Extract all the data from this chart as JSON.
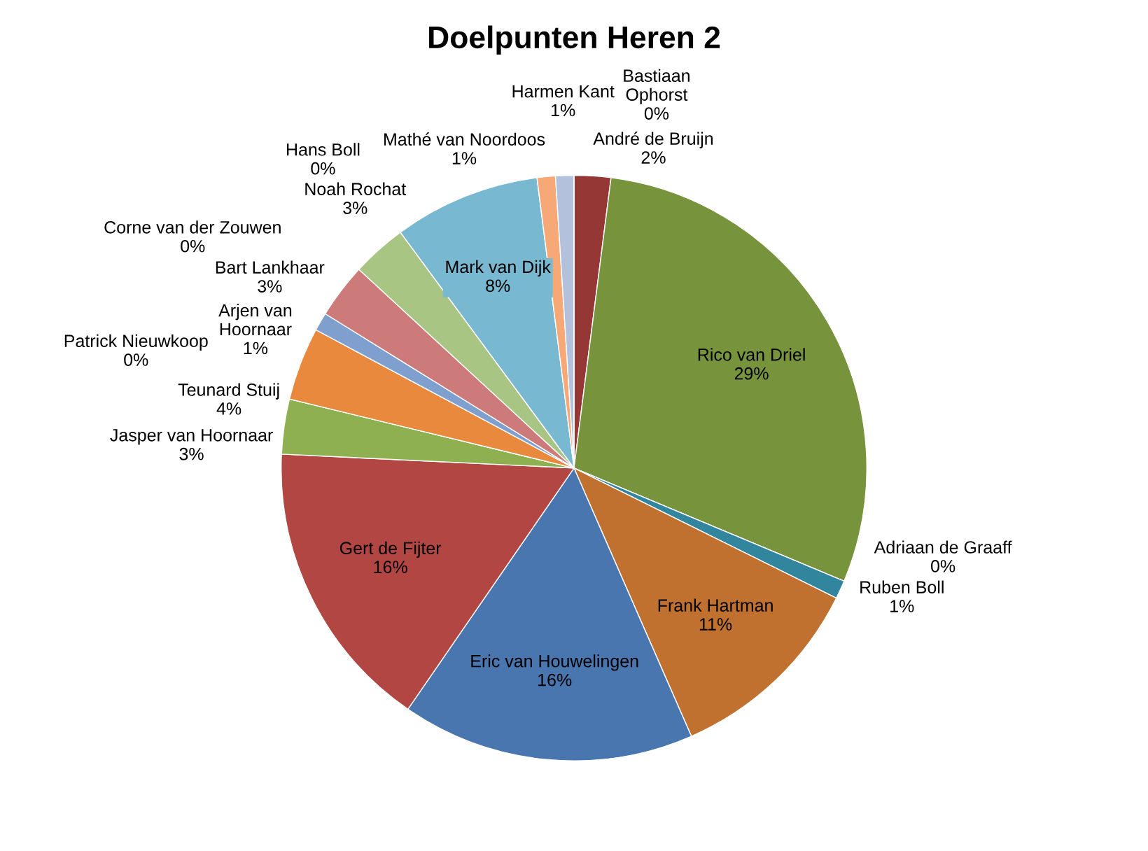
{
  "chart_data": {
    "type": "pie",
    "title": "Doelpunten Heren 2",
    "categories": [
      "André de Bruijn",
      "Rico van Driel",
      "Adriaan de Graaff",
      "Ruben Boll",
      "Frank Hartman",
      "Eric van Houwelingen",
      "Gert de Fijter",
      "Jasper van Hoornaar",
      "Patrick Nieuwkoop",
      "Teunard Stuij",
      "Corne van der Zouwen",
      "Arjen van\nHoornaar",
      "Bart Lankhaar",
      "Noah Rochat",
      "Hans Boll",
      "Mark van Dijk",
      "Mathé van Noordoos",
      "Harmen Kant",
      "Bastiaan\nOphorst"
    ],
    "values": [
      2,
      29,
      0,
      1,
      11,
      16,
      16,
      3,
      0,
      4,
      0,
      1,
      3,
      3,
      0,
      8,
      1,
      1,
      0
    ],
    "value_labels": [
      "2%",
      "29%",
      "0%",
      "1%",
      "11%",
      "16%",
      "16%",
      "3%",
      "0%",
      "4%",
      "0%",
      "1%",
      "3%",
      "3%",
      "0%",
      "8%",
      "1%",
      "1%",
      "0%"
    ],
    "colors": [
      "#953735",
      "#77933c",
      "#31859c",
      "#31859c",
      "#c0712f",
      "#4a76b0",
      "#b24643",
      "#8fb050",
      "#7f62a0",
      "#e8893e",
      "#e8893e",
      "#7f9fce",
      "#cc7b7a",
      "#a9c583",
      "#8f7bb0",
      "#78b8d0",
      "#f6a877",
      "#b4c1dc",
      "#b4c1dc"
    ]
  }
}
